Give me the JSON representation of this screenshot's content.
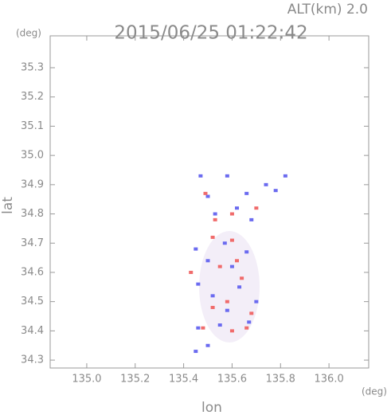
{
  "chart_data": {
    "type": "scatter",
    "title": "2015/06/25 01:22:42",
    "subtitle": "ALT(km) 2.0",
    "y_unit": "(deg)",
    "x_unit": "(deg)",
    "x_label": "lon",
    "y_label": "lat",
    "xlim": [
      134.849,
      136.164
    ],
    "ylim": [
      34.273,
      35.409
    ],
    "xticks": [
      {
        "value": 135,
        "label": "135.0"
      },
      135.2,
      135.4,
      135.6,
      135.8,
      {
        "value": 136,
        "label": "136.0"
      }
    ],
    "yticks": [
      34.3,
      34.4,
      34.5,
      34.6,
      34.7,
      34.8,
      34.9,
      {
        "value": 35,
        "label": "35.0"
      },
      35.1,
      35.2,
      35.3
    ],
    "series": [
      {
        "color": "#6b6bf0",
        "x": [
          135.47,
          135.5,
          135.58,
          135.66,
          135.74,
          135.82,
          135.53,
          135.62,
          135.68,
          135.45,
          135.5,
          135.57,
          135.66,
          135.46,
          135.52,
          135.63,
          135.7,
          135.58,
          135.46,
          135.55,
          135.67,
          135.45,
          135.5,
          135.6,
          135.78
        ],
        "y": [
          34.93,
          34.86,
          34.93,
          34.87,
          34.9,
          34.93,
          34.8,
          34.82,
          34.78,
          34.68,
          34.64,
          34.7,
          34.67,
          34.56,
          34.52,
          34.55,
          34.5,
          34.47,
          34.41,
          34.42,
          34.43,
          34.33,
          34.35,
          34.62,
          34.88
        ]
      },
      {
        "color": "#f06b6b",
        "x": [
          135.49,
          135.6,
          135.7,
          135.52,
          135.6,
          135.43,
          135.55,
          135.64,
          135.58,
          135.52,
          135.68,
          135.6,
          135.48,
          135.66,
          135.53,
          135.62
        ],
        "y": [
          34.87,
          34.8,
          34.82,
          34.72,
          34.71,
          34.6,
          34.62,
          34.58,
          34.5,
          34.48,
          34.46,
          34.4,
          34.41,
          34.41,
          34.78,
          34.64
        ]
      }
    ]
  }
}
